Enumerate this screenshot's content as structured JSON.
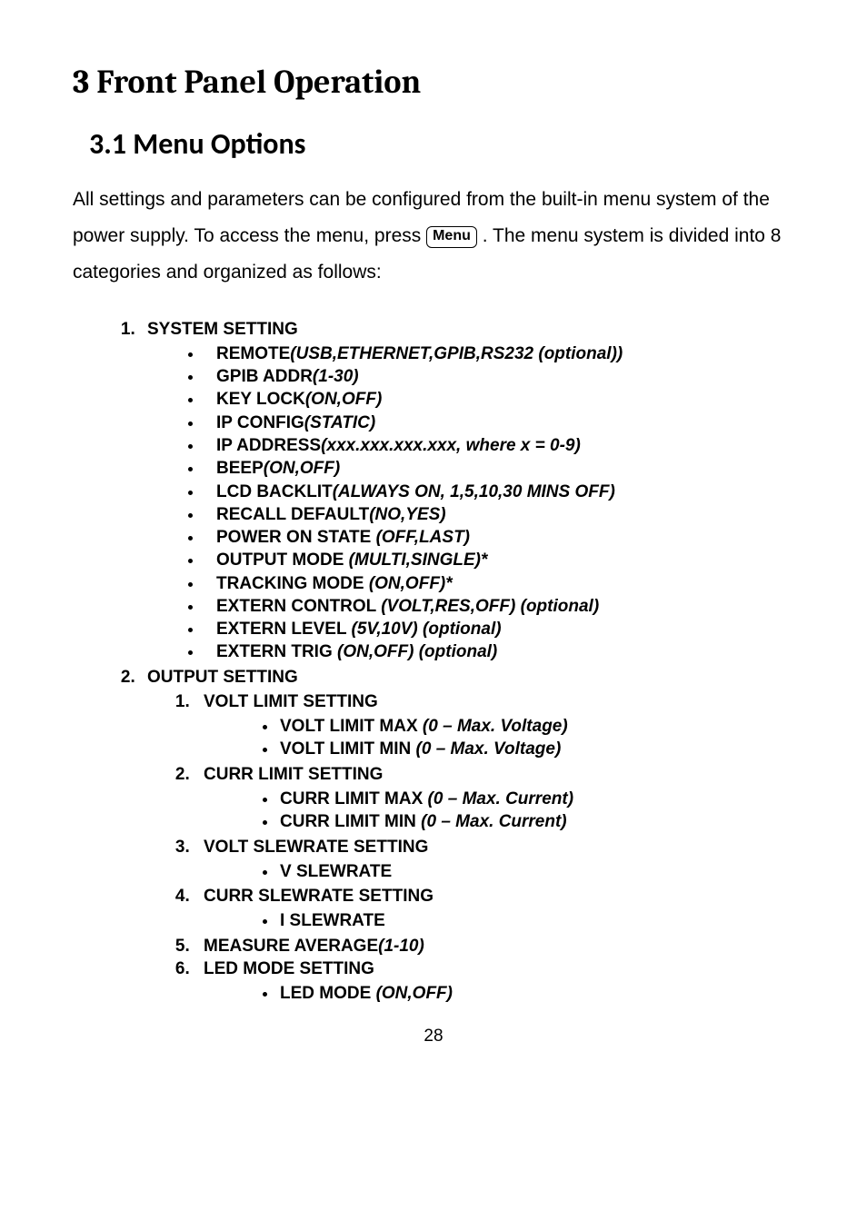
{
  "chapter_title": "3  Front Panel Operation",
  "section_title": "3.1   Menu Options",
  "intro_pre": "All settings and parameters can be configured from the built-in menu system of the power supply.  To access the menu, press ",
  "menu_key": "Menu",
  "intro_post": " . The menu system is divided into 8 categories and organized as follows:",
  "menu": [
    {
      "title": "SYSTEM SETTING",
      "items": [
        {
          "name": "REMOTE",
          "opts": "(USB,ETHERNET,GPIB,RS232 (optional))"
        },
        {
          "name": "GPIB ADDR",
          "opts": "(1-30)"
        },
        {
          "name": "KEY LOCK",
          "opts": "(ON,OFF)"
        },
        {
          "name": "IP CONFIG",
          "opts": "(STATIC)"
        },
        {
          "name": "IP ADDRESS",
          "opts": "(xxx.xxx.xxx.xxx, where x = 0-9)"
        },
        {
          "name": "BEEP",
          "opts": "(ON,OFF)"
        },
        {
          "name": "LCD BACKLIT",
          "opts": "(ALWAYS ON, 1,5,10,30 MINS OFF)"
        },
        {
          "name": "RECALL DEFAULT",
          "opts": "(NO,YES)"
        },
        {
          "name": "POWER ON STATE ",
          "opts": "(OFF,LAST)"
        },
        {
          "name": "OUTPUT MODE   ",
          "opts": "(MULTI,SINGLE)*"
        },
        {
          "name": "TRACKING MODE   ",
          "opts": "(ON,OFF)*"
        },
        {
          "name": "EXTERN CONTROL   ",
          "opts": "(VOLT,RES,OFF) (optional)"
        },
        {
          "name": "EXTERN LEVEL   ",
          "opts": "(5V,10V) (optional)"
        },
        {
          "name": "EXTERN TRIG   ",
          "opts": "(ON,OFF) (optional)"
        }
      ]
    },
    {
      "title": "OUTPUT SETTING",
      "sub": [
        {
          "title": "VOLT LIMIT SETTING",
          "items": [
            {
              "name": "VOLT LIMIT MAX   ",
              "opts": "(0 – Max. Voltage)"
            },
            {
              "name": "VOLT LIMIT MIN   ",
              "opts": "(0 – Max. Voltage)"
            }
          ]
        },
        {
          "title": "CURR LIMIT SETTING",
          "items": [
            {
              "name": "CURR LIMIT MAX   ",
              "opts": "(0 – Max. Current)"
            },
            {
              "name": "CURR LIMIT MIN   ",
              "opts": "(0 – Max. Current)"
            }
          ]
        },
        {
          "title": "VOLT SLEWRATE SETTING",
          "items": [
            {
              "name": "V SLEWRATE",
              "opts": ""
            }
          ]
        },
        {
          "title": "CURR SLEWRATE SETTING",
          "items": [
            {
              "name": "I SLEWRATE",
              "opts": ""
            }
          ]
        },
        {
          "title": "MEASURE AVERAGE",
          "title_opts": "(1-10)"
        },
        {
          "title": "LED MODE SETTING",
          "items": [
            {
              "name": "LED MODE   ",
              "opts": "(ON,OFF)"
            }
          ]
        }
      ]
    }
  ],
  "page_number": "28"
}
